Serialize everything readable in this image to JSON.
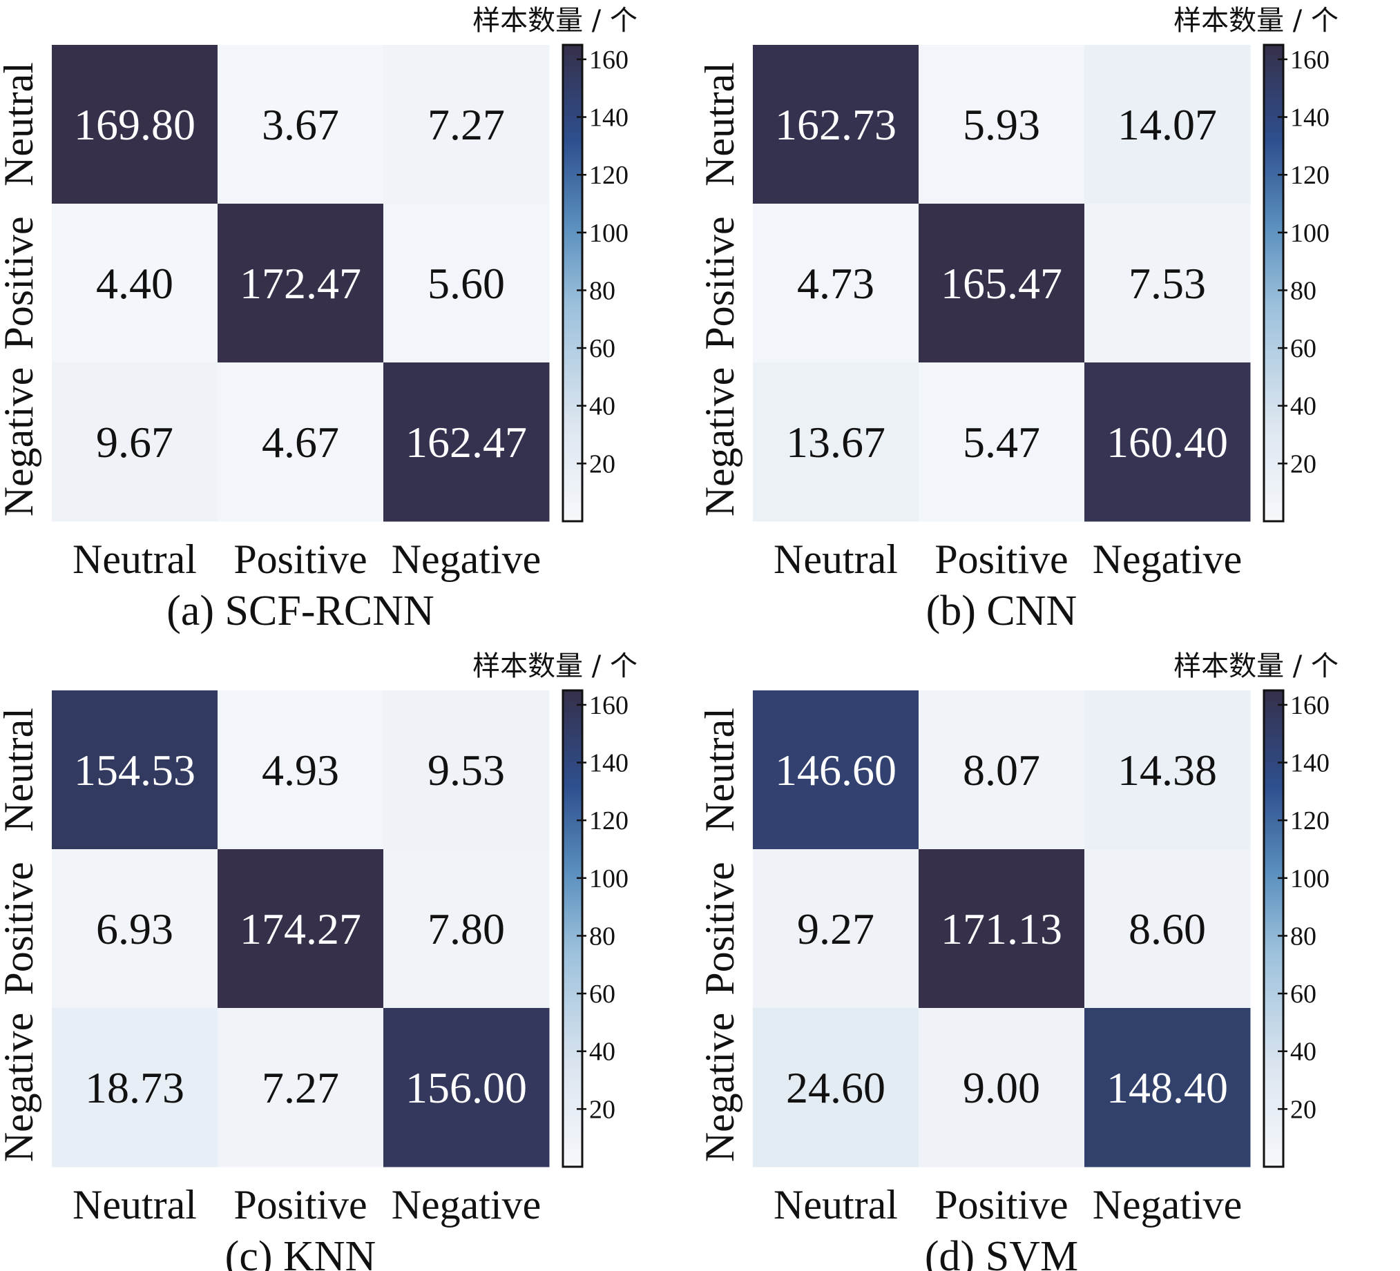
{
  "chart_data": [
    {
      "type": "heatmap",
      "caption": "(a) SCF-RCNN",
      "x_categories": [
        "Neutral",
        "Positive",
        "Negative"
      ],
      "y_categories": [
        "Neutral",
        "Positive",
        "Negative"
      ],
      "values": [
        [
          169.8,
          3.67,
          7.27
        ],
        [
          4.4,
          172.47,
          5.6
        ],
        [
          9.67,
          4.67,
          162.47
        ]
      ],
      "labels": [
        [
          "169.80",
          "3.67",
          "7.27"
        ],
        [
          "4.40",
          "172.47",
          "5.60"
        ],
        [
          "9.67",
          "4.67",
          "162.47"
        ]
      ],
      "colorbar": {
        "label": "样本数量 / 个",
        "ticks": [
          "20",
          "40",
          "60",
          "80",
          "100",
          "120",
          "140",
          "160"
        ],
        "range": [
          0,
          165
        ]
      }
    },
    {
      "type": "heatmap",
      "caption": "(b) CNN",
      "x_categories": [
        "Neutral",
        "Positive",
        "Negative"
      ],
      "y_categories": [
        "Neutral",
        "Positive",
        "Negative"
      ],
      "values": [
        [
          162.73,
          5.93,
          14.07
        ],
        [
          4.73,
          165.47,
          7.53
        ],
        [
          13.67,
          5.47,
          160.4
        ]
      ],
      "labels": [
        [
          "162.73",
          "5.93",
          "14.07"
        ],
        [
          "4.73",
          "165.47",
          "7.53"
        ],
        [
          "13.67",
          "5.47",
          "160.40"
        ]
      ],
      "colorbar": {
        "label": "样本数量 / 个",
        "ticks": [
          "20",
          "40",
          "60",
          "80",
          "100",
          "120",
          "140",
          "160"
        ],
        "range": [
          0,
          165
        ]
      }
    },
    {
      "type": "heatmap",
      "caption": "(c) KNN",
      "x_categories": [
        "Neutral",
        "Positive",
        "Negative"
      ],
      "y_categories": [
        "Neutral",
        "Positive",
        "Negative"
      ],
      "values": [
        [
          154.53,
          4.93,
          9.53
        ],
        [
          6.93,
          174.27,
          7.8
        ],
        [
          18.73,
          7.27,
          156.0
        ]
      ],
      "labels": [
        [
          "154.53",
          "4.93",
          "9.53"
        ],
        [
          "6.93",
          "174.27",
          "7.80"
        ],
        [
          "18.73",
          "7.27",
          "156.00"
        ]
      ],
      "colorbar": {
        "label": "样本数量 / 个",
        "ticks": [
          "20",
          "40",
          "60",
          "80",
          "100",
          "120",
          "140",
          "160"
        ],
        "range": [
          0,
          165
        ]
      }
    },
    {
      "type": "heatmap",
      "caption": "(d) SVM",
      "x_categories": [
        "Neutral",
        "Positive",
        "Negative"
      ],
      "y_categories": [
        "Neutral",
        "Positive",
        "Negative"
      ],
      "values": [
        [
          146.6,
          8.07,
          14.38
        ],
        [
          9.27,
          171.13,
          8.6
        ],
        [
          24.6,
          9.0,
          148.4
        ]
      ],
      "labels": [
        [
          "146.60",
          "8.07",
          "14.38"
        ],
        [
          "9.27",
          "171.13",
          "8.60"
        ],
        [
          "24.60",
          "9.00",
          "148.40"
        ]
      ],
      "colorbar": {
        "label": "样本数量 / 个",
        "ticks": [
          "20",
          "40",
          "60",
          "80",
          "100",
          "120",
          "140",
          "160"
        ],
        "range": [
          0,
          165
        ]
      }
    }
  ],
  "colors": {
    "low": "#f6f8fb",
    "light": "#dde6f0",
    "mid": "#6fa3c8",
    "blue": "#2e4f8e",
    "dark": "#36304a",
    "text_dark": "#111111",
    "text_light": "#ffffff"
  }
}
